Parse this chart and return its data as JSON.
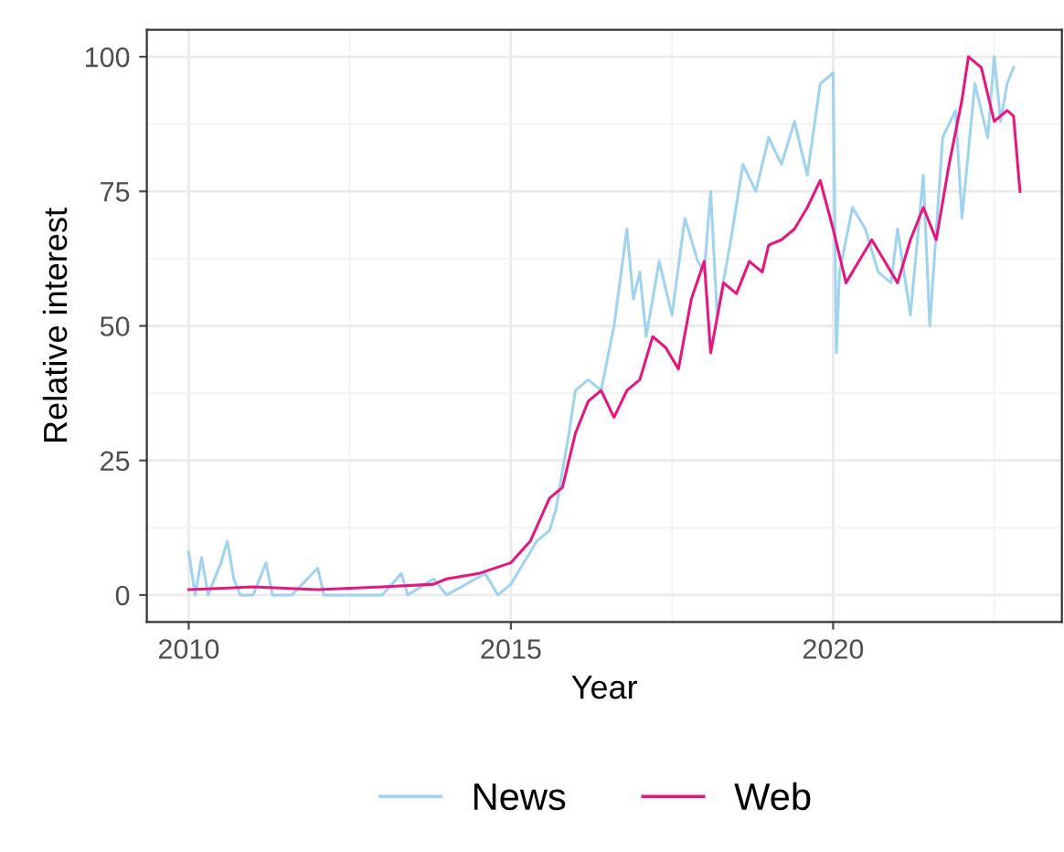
{
  "chart_data": {
    "type": "line",
    "xlabel": "Year",
    "ylabel": "Relative interest",
    "xlim": [
      2009.35,
      2023.55
    ],
    "xticks": [
      2010,
      2015,
      2020
    ],
    "ylim": [
      -5,
      105
    ],
    "yticks": [
      0,
      25,
      50,
      75,
      100
    ],
    "grid": true,
    "legend": "bottom",
    "line_style": "solid",
    "marker": "none",
    "series": [
      {
        "name": "News",
        "color": "#9fd3ef",
        "x": [
          2010,
          2010.1,
          2010.2,
          2010.3,
          2010.5,
          2010.6,
          2010.7,
          2010.8,
          2011,
          2011.2,
          2011.3,
          2011.6,
          2012,
          2012.1,
          2013,
          2013.3,
          2013.4,
          2013.8,
          2014,
          2014.6,
          2014.8,
          2015,
          2015.2,
          2015.4,
          2015.6,
          2015.7,
          2015.9,
          2016,
          2016.2,
          2016.4,
          2016.6,
          2016.8,
          2016.9,
          2017,
          2017.1,
          2017.3,
          2017.5,
          2017.7,
          2017.9,
          2018,
          2018.1,
          2018.2,
          2018.4,
          2018.6,
          2018.8,
          2019,
          2019.2,
          2019.4,
          2019.6,
          2019.8,
          2020,
          2020.05,
          2020.1,
          2020.3,
          2020.5,
          2020.7,
          2020.9,
          2021,
          2021.2,
          2021.4,
          2021.5,
          2021.7,
          2021.9,
          2022,
          2022.2,
          2022.4,
          2022.5,
          2022.6,
          2022.7,
          2022.8
        ],
        "values": [
          8,
          0,
          7,
          0,
          6,
          10,
          3,
          0,
          0,
          6,
          0,
          0,
          5,
          0,
          0,
          4,
          0,
          3,
          0,
          4,
          0,
          2,
          6,
          10,
          12,
          16,
          30,
          38,
          40,
          38,
          50,
          68,
          55,
          60,
          48,
          62,
          52,
          70,
          62,
          60,
          75,
          52,
          65,
          80,
          75,
          85,
          80,
          88,
          78,
          95,
          97,
          45,
          60,
          72,
          68,
          60,
          58,
          68,
          52,
          78,
          50,
          85,
          90,
          70,
          95,
          85,
          100,
          88,
          95,
          98
        ]
      },
      {
        "name": "Web",
        "color": "#e5167f",
        "x": [
          2010,
          2011,
          2012,
          2013,
          2013.8,
          2014,
          2014.5,
          2015,
          2015.3,
          2015.6,
          2015.8,
          2016,
          2016.2,
          2016.4,
          2016.6,
          2016.8,
          2017,
          2017.2,
          2017.4,
          2017.6,
          2017.8,
          2018,
          2018.1,
          2018.3,
          2018.5,
          2018.7,
          2018.9,
          2019,
          2019.2,
          2019.4,
          2019.6,
          2019.8,
          2020,
          2020.2,
          2020.4,
          2020.6,
          2020.8,
          2021,
          2021.2,
          2021.4,
          2021.6,
          2021.8,
          2022,
          2022.1,
          2022.3,
          2022.5,
          2022.7,
          2022.8,
          2022.9
        ],
        "values": [
          1,
          1.5,
          1,
          1.5,
          2,
          3,
          4,
          6,
          10,
          18,
          20,
          30,
          36,
          38,
          33,
          38,
          40,
          48,
          46,
          42,
          55,
          62,
          45,
          58,
          56,
          62,
          60,
          65,
          66,
          68,
          72,
          77,
          68,
          58,
          62,
          66,
          62,
          58,
          66,
          72,
          66,
          80,
          92,
          100,
          98,
          88,
          90,
          89,
          75
        ]
      }
    ]
  }
}
